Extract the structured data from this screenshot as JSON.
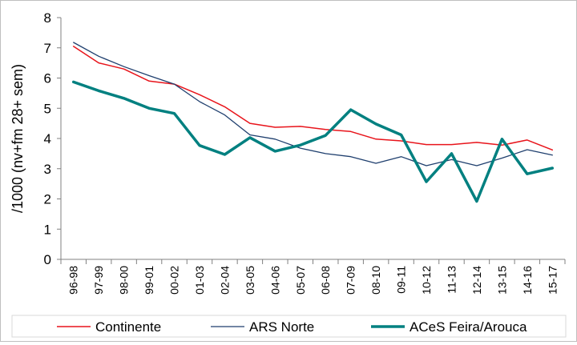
{
  "chart_data": {
    "type": "line",
    "ylabel": "/1000 (nv+fm 28+ sem)",
    "ylim": [
      0,
      8
    ],
    "yticks": [
      0,
      1,
      2,
      3,
      4,
      5,
      6,
      7,
      8
    ],
    "categories": [
      "96-98",
      "97-99",
      "98-00",
      "99-01",
      "00-02",
      "01-03",
      "02-04",
      "03-05",
      "04-06",
      "05-07",
      "06-08",
      "07-09",
      "08-10",
      "09-11",
      "10-12",
      "11-13",
      "12-14",
      "13-15",
      "14-16",
      "15-17"
    ],
    "legend_position": "bottom",
    "series": [
      {
        "name": "Continente",
        "color": "#e8141b",
        "values": [
          7.05,
          6.5,
          6.3,
          5.9,
          5.8,
          5.45,
          5.05,
          4.5,
          4.37,
          4.4,
          4.3,
          4.23,
          3.98,
          3.92,
          3.8,
          3.8,
          3.87,
          3.78,
          3.95,
          3.62
        ]
      },
      {
        "name": "ARS Norte",
        "color": "#1f3f6e",
        "values": [
          7.18,
          6.72,
          6.38,
          6.08,
          5.8,
          5.22,
          4.78,
          4.12,
          3.98,
          3.68,
          3.5,
          3.4,
          3.18,
          3.4,
          3.1,
          3.3,
          3.1,
          3.35,
          3.63,
          3.45
        ]
      },
      {
        "name": "ACeS Feira/Arouca",
        "color": "#008080",
        "values": [
          5.87,
          5.58,
          5.33,
          5.0,
          4.83,
          3.77,
          3.47,
          4.03,
          3.58,
          3.78,
          4.1,
          4.95,
          4.48,
          4.12,
          2.57,
          3.5,
          1.92,
          3.98,
          2.83,
          3.02
        ]
      }
    ]
  }
}
